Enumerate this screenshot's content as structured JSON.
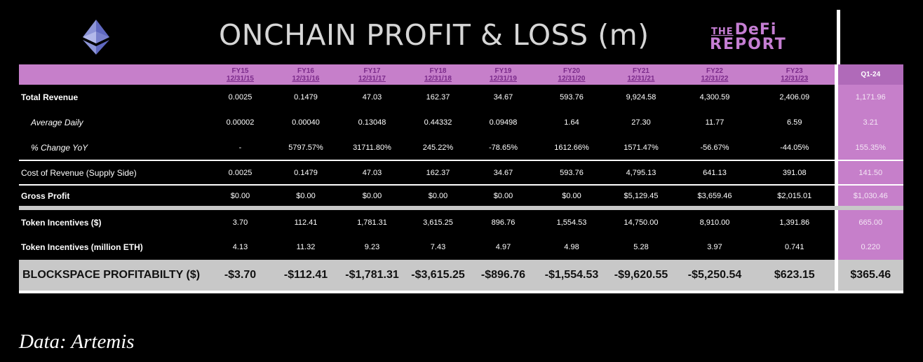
{
  "header": {
    "title": "ONCHAIN PROFIT & LOSS (m)",
    "brand_the": "THE",
    "brand_defi": "DeFi",
    "brand_report": "REPORT",
    "logo": "ethereum-icon"
  },
  "columns": [
    {
      "fy": "FY15",
      "date": "12/31/15"
    },
    {
      "fy": "FY16",
      "date": "12/31/16"
    },
    {
      "fy": "FY17",
      "date": "12/31/17"
    },
    {
      "fy": "FY18",
      "date": "12/31/18"
    },
    {
      "fy": "FY19",
      "date": "12/31/19"
    },
    {
      "fy": "FY20",
      "date": "12/31/20"
    },
    {
      "fy": "FY21",
      "date": "12/31/21"
    },
    {
      "fy": "FY22",
      "date": "12/31/22"
    },
    {
      "fy": "FY23",
      "date": "12/31/23"
    },
    {
      "fy": "Q1-24",
      "date": ""
    }
  ],
  "rows": [
    {
      "label": "Total Revenue",
      "values": [
        "0.0025",
        "0.1479",
        "47.03",
        "162.37",
        "34.67",
        "593.76",
        "9,924.58",
        "4,300.59",
        "2,406.09",
        "1,171.96"
      ]
    },
    {
      "label": "Average Daily",
      "values": [
        "0.00002",
        "0.00040",
        "0.13048",
        "0.44332",
        "0.09498",
        "1.64",
        "27.30",
        "11.77",
        "6.59",
        "3.21"
      ]
    },
    {
      "label": "% Change YoY",
      "values": [
        "-",
        "5797.57%",
        "31711.80%",
        "245.22%",
        "-78.65%",
        "1612.66%",
        "1571.47%",
        "-56.67%",
        "-44.05%",
        "155.35%"
      ]
    },
    {
      "label": "Cost of Revenue (Supply Side)",
      "values": [
        "0.0025",
        "0.1479",
        "47.03",
        "162.37",
        "34.67",
        "593.76",
        "4,795.13",
        "641.13",
        "391.08",
        "141.50"
      ]
    },
    {
      "label": "Gross Profit",
      "values": [
        "$0.00",
        "$0.00",
        "$0.00",
        "$0.00",
        "$0.00",
        "$0.00",
        "$5,129.45",
        "$3,659.46",
        "$2,015.01",
        "$1,030.46"
      ]
    },
    {
      "label": "Token Incentives ($)",
      "values": [
        "3.70",
        "112.41",
        "1,781.31",
        "3,615.25",
        "896.76",
        "1,554.53",
        "14,750.00",
        "8,910.00",
        "1,391.86",
        "665.00"
      ]
    },
    {
      "label": "Token Incentives (million ETH)",
      "values": [
        "4.13",
        "11.32",
        "9.23",
        "7.43",
        "4.97",
        "4.98",
        "5.28",
        "3.97",
        "0.741",
        "0.220"
      ]
    },
    {
      "label": "BLOCKSPACE PROFITABILTY ($)",
      "values": [
        "-$3.70",
        "-$112.41",
        "-$1,781.31",
        "-$3,615.25",
        "-$896.76",
        "-$1,554.53",
        "-$9,620.55",
        "-$5,250.54",
        "$623.15",
        "$365.46"
      ]
    }
  ],
  "footer": {
    "source": "Data: Artemis"
  },
  "colors": {
    "header_purple": "#c67fca",
    "profit_gray": "#c8c8c8",
    "background": "#000000"
  }
}
